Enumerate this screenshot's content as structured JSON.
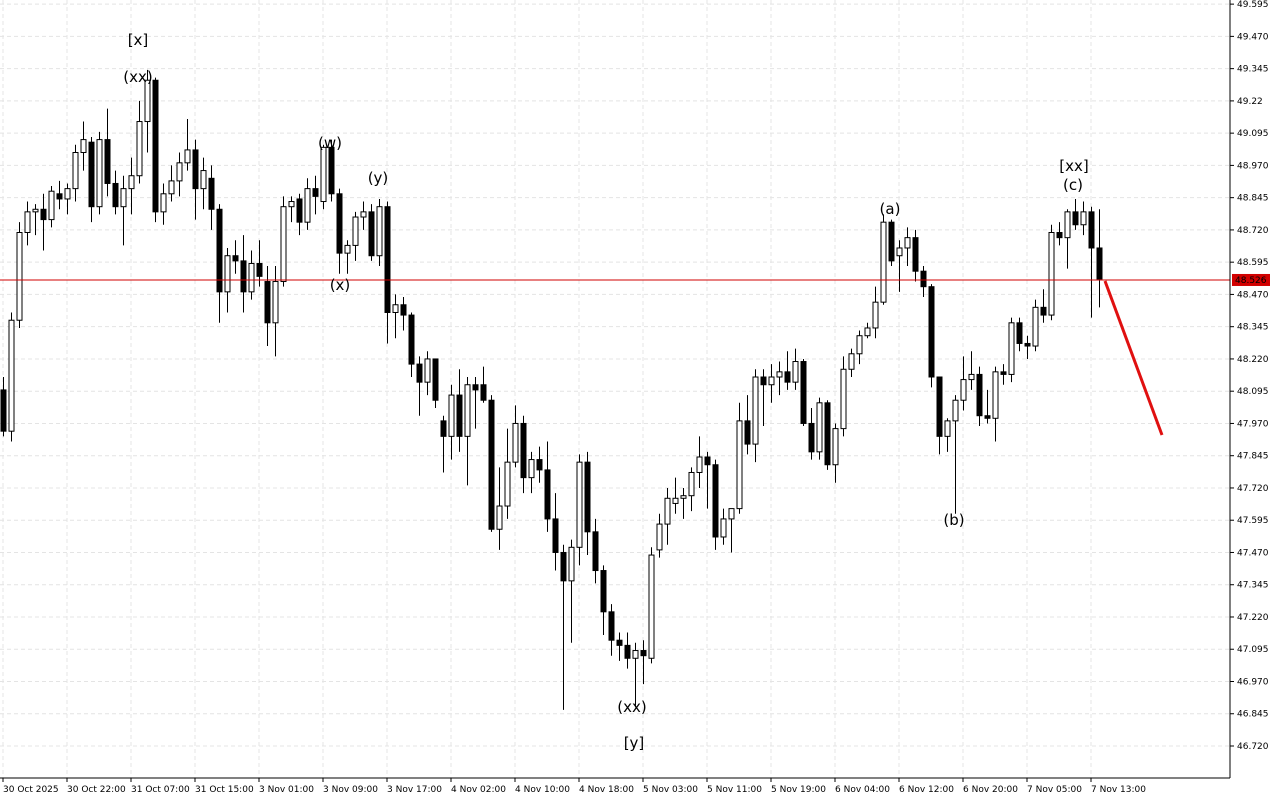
{
  "chart_data": {
    "type": "candlestick",
    "categories": [
      "30 Oct 2025",
      null,
      null,
      null,
      null,
      null,
      null,
      null,
      "30 Oct 22:00",
      null,
      null,
      null,
      null,
      null,
      null,
      null,
      "31 Oct 07:00",
      null,
      null,
      null,
      null,
      null,
      null,
      null,
      "31 Oct 15:00",
      null,
      null,
      null,
      null,
      null,
      null,
      null,
      "3 Nov 01:00",
      null,
      null,
      null,
      null,
      null,
      null,
      null,
      "3 Nov 09:00",
      null,
      null,
      null,
      null,
      null,
      null,
      null,
      "3 Nov 17:00",
      null,
      null,
      null,
      null,
      null,
      null,
      null,
      "4 Nov 02:00",
      null,
      null,
      null,
      null,
      null,
      null,
      null,
      "4 Nov 10:00",
      null,
      null,
      null,
      null,
      null,
      null,
      null,
      "4 Nov 18:00",
      null,
      null,
      null,
      null,
      null,
      null,
      null,
      "5 Nov 03:00",
      null,
      null,
      null,
      null,
      null,
      null,
      null,
      "5 Nov 11:00",
      null,
      null,
      null,
      null,
      null,
      null,
      null,
      "5 Nov 19:00",
      null,
      null,
      null,
      null,
      null,
      null,
      null,
      "6 Nov 04:00",
      null,
      null,
      null,
      null,
      null,
      null,
      null,
      "6 Nov 12:00",
      null,
      null,
      null,
      null,
      null,
      null,
      null,
      "6 Nov 20:00",
      null,
      null,
      null,
      null,
      null,
      null,
      null,
      "7 Nov 05:00",
      null,
      null,
      null,
      null,
      null,
      null,
      null,
      "7 Nov 13:00",
      null
    ],
    "open": [
      48.1,
      47.94,
      48.37,
      48.71,
      48.79,
      48.8,
      48.76,
      48.86,
      48.84,
      48.88,
      49.02,
      49.06,
      48.81,
      49.07,
      48.9,
      48.81,
      48.88,
      48.93,
      49.14,
      49.3,
      48.79,
      48.86,
      48.91,
      48.98,
      49.03,
      48.88,
      48.92,
      48.8,
      48.48,
      48.62,
      48.6,
      48.48,
      48.59,
      48.52,
      48.36,
      48.52,
      48.81,
      48.84,
      48.75,
      48.88,
      48.83,
      49.04,
      48.86,
      48.63,
      48.66,
      48.77,
      48.79,
      48.62,
      48.81,
      48.4,
      48.43,
      48.39,
      48.2,
      48.13,
      48.22,
      47.98,
      47.92,
      48.08,
      47.92,
      48.12,
      48.12,
      48.06,
      47.56,
      47.65,
      47.82,
      47.97,
      47.76,
      47.83,
      47.79,
      47.6,
      47.47,
      47.36,
      47.49,
      47.82,
      47.55,
      47.4,
      47.24,
      47.13,
      47.11,
      47.06,
      47.09,
      47.06,
      47.48,
      47.58,
      47.66,
      47.68,
      47.69,
      47.78,
      47.84,
      47.81,
      47.53,
      47.6,
      47.64,
      47.98,
      47.89,
      48.15,
      48.12,
      48.15,
      48.17,
      48.13,
      48.21,
      47.97,
      47.86,
      48.05,
      47.81,
      47.95,
      48.18,
      48.24,
      48.31,
      48.34,
      48.44,
      48.75,
      48.62,
      48.65,
      48.69,
      48.56,
      48.5,
      48.15,
      47.92,
      47.98,
      48.06,
      48.14,
      48.16,
      48.0,
      47.99,
      48.17,
      48.16,
      48.36,
      48.28,
      48.27,
      48.42,
      48.39,
      48.71,
      48.69,
      48.79,
      48.74,
      48.79,
      48.65
    ],
    "high": [
      48.15,
      48.4,
      48.75,
      48.83,
      48.82,
      48.86,
      48.89,
      48.91,
      48.9,
      49.05,
      49.14,
      49.08,
      49.1,
      49.19,
      48.95,
      48.93,
      49.0,
      49.22,
      49.34,
      49.31,
      48.9,
      48.97,
      49.02,
      49.15,
      49.07,
      49.0,
      48.97,
      48.82,
      48.65,
      48.68,
      48.7,
      48.64,
      48.68,
      48.58,
      48.58,
      48.85,
      48.85,
      48.86,
      48.92,
      48.93,
      49.05,
      49.07,
      48.88,
      48.68,
      48.79,
      48.83,
      48.82,
      48.84,
      48.83,
      48.47,
      48.46,
      48.4,
      48.23,
      48.25,
      48.22,
      48.0,
      48.12,
      48.18,
      48.15,
      48.15,
      48.19,
      48.08,
      47.8,
      47.95,
      48.04,
      48.0,
      47.86,
      47.88,
      47.9,
      47.7,
      47.5,
      47.52,
      47.85,
      47.86,
      47.6,
      47.42,
      47.27,
      47.16,
      47.16,
      47.12,
      47.13,
      47.49,
      47.62,
      47.72,
      47.76,
      47.72,
      47.8,
      47.92,
      47.86,
      47.83,
      47.64,
      47.64,
      48.05,
      48.08,
      48.18,
      48.18,
      48.2,
      48.21,
      48.25,
      48.26,
      48.22,
      48.03,
      48.07,
      48.06,
      47.97,
      48.23,
      48.26,
      48.33,
      48.36,
      48.5,
      48.78,
      48.76,
      48.68,
      48.73,
      48.72,
      48.58,
      48.51,
      48.15,
      47.99,
      48.08,
      48.23,
      48.25,
      48.19,
      48.1,
      48.19,
      48.2,
      48.38,
      48.38,
      48.31,
      48.45,
      48.49,
      48.74,
      48.75,
      48.8,
      48.84,
      48.83,
      48.81,
      48.8
    ],
    "low": [
      47.92,
      47.9,
      48.34,
      48.66,
      48.7,
      48.64,
      48.73,
      48.8,
      48.78,
      48.83,
      48.95,
      48.75,
      48.78,
      48.85,
      48.78,
      48.66,
      48.78,
      48.9,
      49.02,
      48.75,
      48.74,
      48.83,
      48.85,
      48.95,
      48.76,
      48.8,
      48.72,
      48.36,
      48.4,
      48.55,
      48.4,
      48.45,
      48.5,
      48.27,
      48.23,
      48.5,
      48.75,
      48.7,
      48.72,
      48.78,
      48.8,
      48.83,
      48.55,
      48.55,
      48.6,
      48.72,
      48.6,
      48.58,
      48.28,
      48.3,
      48.33,
      48.15,
      48.0,
      48.08,
      48.03,
      47.78,
      47.83,
      47.86,
      47.73,
      47.95,
      48.05,
      47.55,
      47.48,
      47.6,
      47.8,
      47.7,
      47.7,
      47.74,
      47.55,
      47.4,
      46.86,
      47.12,
      47.42,
      47.46,
      47.35,
      47.15,
      47.07,
      47.05,
      47.02,
      46.87,
      46.96,
      47.04,
      47.45,
      47.5,
      47.62,
      47.6,
      47.63,
      47.72,
      47.64,
      47.48,
      47.5,
      47.47,
      47.62,
      47.85,
      47.82,
      47.96,
      48.05,
      48.08,
      48.1,
      48.1,
      47.96,
      47.83,
      47.83,
      47.79,
      47.74,
      47.92,
      48.15,
      48.2,
      48.3,
      48.3,
      48.43,
      48.58,
      48.48,
      48.58,
      48.52,
      48.46,
      48.11,
      47.85,
      47.86,
      47.62,
      48.02,
      48.1,
      47.96,
      47.97,
      47.9,
      48.12,
      48.13,
      48.25,
      48.22,
      48.25,
      48.36,
      48.37,
      48.66,
      48.57,
      48.72,
      48.7,
      48.38,
      48.42
    ],
    "close": [
      47.94,
      48.37,
      48.71,
      48.79,
      48.8,
      48.76,
      48.87,
      48.84,
      48.88,
      49.02,
      49.07,
      48.81,
      49.07,
      48.9,
      48.81,
      48.88,
      48.93,
      49.14,
      49.3,
      48.79,
      48.86,
      48.91,
      48.98,
      49.03,
      48.88,
      48.95,
      48.8,
      48.48,
      48.62,
      48.6,
      48.48,
      48.59,
      48.54,
      48.36,
      48.52,
      48.81,
      48.83,
      48.75,
      48.88,
      48.85,
      49.04,
      48.86,
      48.63,
      48.66,
      48.77,
      48.79,
      48.62,
      48.81,
      48.4,
      48.43,
      48.39,
      48.2,
      48.13,
      48.22,
      48.06,
      47.92,
      48.08,
      47.92,
      48.12,
      48.1,
      48.06,
      47.56,
      47.65,
      47.82,
      47.97,
      47.76,
      47.83,
      47.79,
      47.6,
      47.47,
      47.36,
      47.49,
      47.82,
      47.55,
      47.4,
      47.24,
      47.13,
      47.11,
      47.06,
      47.09,
      47.07,
      47.46,
      47.58,
      47.68,
      47.68,
      47.69,
      47.78,
      47.84,
      47.81,
      47.53,
      47.6,
      47.64,
      47.98,
      47.89,
      48.15,
      48.12,
      48.15,
      48.17,
      48.13,
      48.21,
      47.97,
      47.86,
      48.05,
      47.81,
      47.95,
      48.18,
      48.24,
      48.31,
      48.34,
      48.44,
      48.75,
      48.6,
      48.65,
      48.69,
      48.56,
      48.5,
      48.15,
      47.92,
      47.98,
      48.06,
      48.14,
      48.16,
      48.0,
      47.99,
      48.17,
      48.16,
      48.36,
      48.28,
      48.27,
      48.42,
      48.39,
      48.71,
      48.69,
      48.79,
      48.74,
      48.79,
      48.65,
      48.53
    ],
    "up_color": "#ffffff",
    "down_color": "#000000",
    "line_color": "#000000",
    "ylim": [
      46.596,
      49.611
    ],
    "yticks": [
      49.595,
      {
        "value": 49.47,
        "label": "49.470"
      },
      49.345,
      49.22,
      49.095,
      {
        "value": 48.97,
        "label": "48.970"
      },
      48.845,
      {
        "value": 48.72,
        "label": "48.720"
      },
      48.595,
      {
        "value": 48.47,
        "label": "48.470"
      },
      48.345,
      {
        "value": 48.22,
        "label": "48.220"
      },
      48.095,
      {
        "value": 47.97,
        "label": "47.970"
      },
      47.845,
      {
        "value": 47.72,
        "label": "47.720"
      },
      47.595,
      {
        "value": 47.47,
        "label": "47.470"
      },
      47.345,
      {
        "value": 47.22,
        "label": "47.220"
      },
      47.095,
      {
        "value": 46.97,
        "label": "46.970"
      },
      46.845,
      {
        "value": 46.72,
        "label": "46.720"
      }
    ],
    "grid": true,
    "last_price": 48.526,
    "last_price_color": "#d20000",
    "annotations": [
      {
        "text": "[x]",
        "color": "#3cc83c"
      },
      {
        "text": "(xx)",
        "color": "#1e1ed2"
      },
      {
        "text": "(w)",
        "color": "#1e1ed2"
      },
      {
        "text": "(y)",
        "color": "#1e1ed2"
      },
      {
        "text": "(x)",
        "color": "#1e1ed2"
      },
      {
        "text": "(xx)",
        "color": "#1e1ed2"
      },
      {
        "text": "[y]",
        "color": "#3cc83c"
      },
      {
        "text": "(a)",
        "color": "#1e1ed2"
      },
      {
        "text": "(b)",
        "color": "#1e1ed2"
      },
      {
        "text": "[xx]",
        "color": "#3cc83c"
      },
      {
        "text": "(c)",
        "color": "#1e1ed2"
      }
    ]
  }
}
